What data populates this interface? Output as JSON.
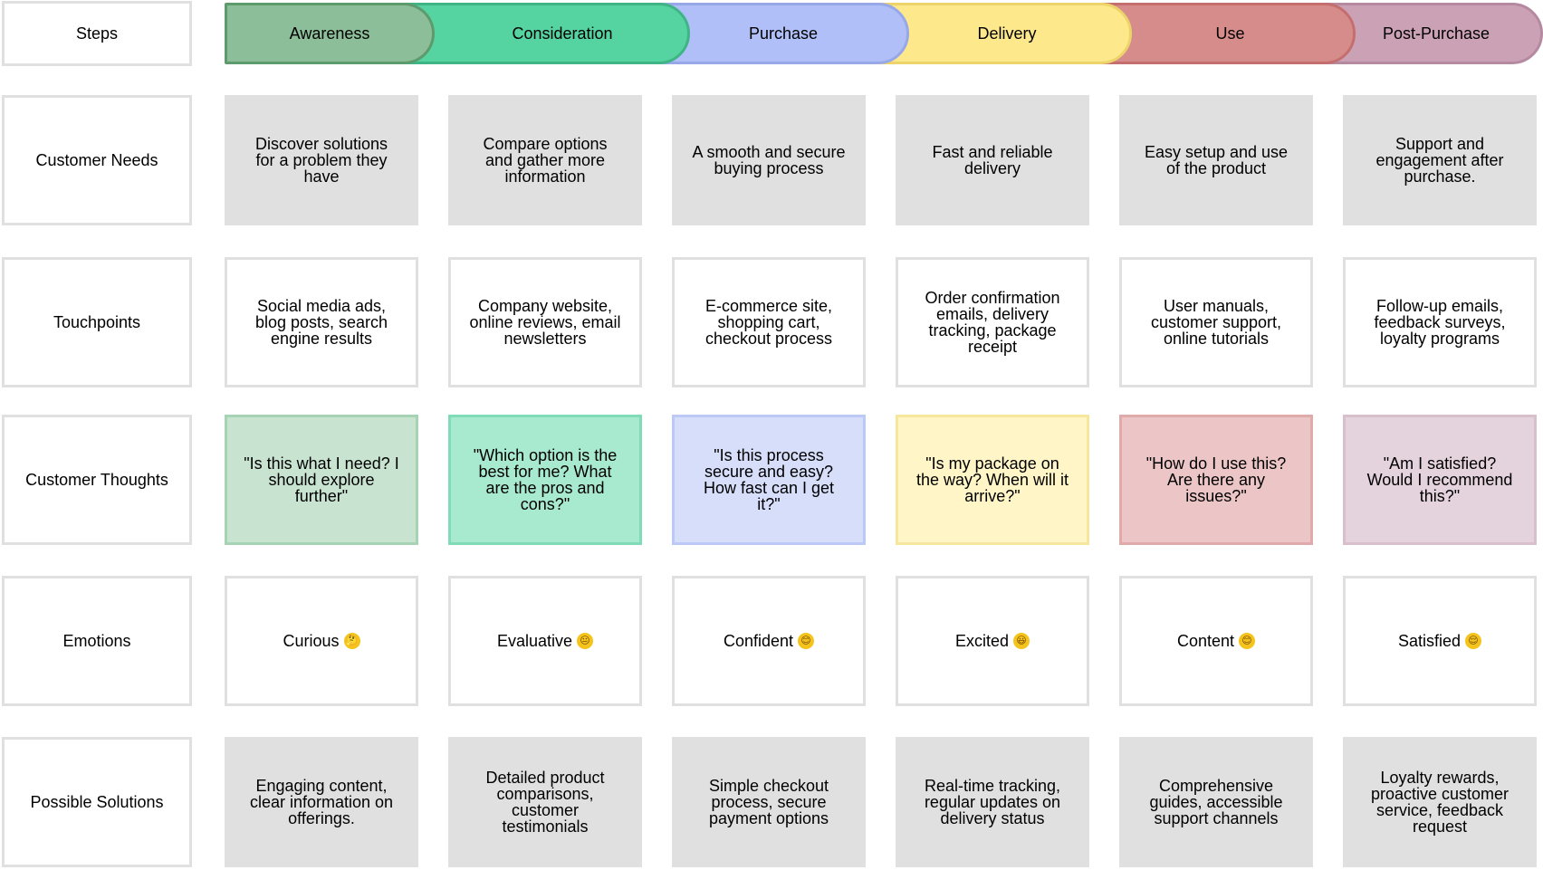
{
  "header": {
    "steps_label": "Steps"
  },
  "stages": [
    {
      "name": "Awareness",
      "fill": "#8bbe99",
      "border": "#5d9a6c",
      "thought_fill": "#c8e4d1",
      "thought_border": "#a6d3b3"
    },
    {
      "name": "Consideration",
      "fill": "#55d3a1",
      "border": "#3fb585",
      "thought_fill": "#a8ead0",
      "thought_border": "#7fdcb6"
    },
    {
      "name": "Purchase",
      "fill": "#b0bff7",
      "border": "#97a8e8",
      "thought_fill": "#d6defa",
      "thought_border": "#bcc8f5"
    },
    {
      "name": "Delivery",
      "fill": "#fde88b",
      "border": "#ecd46a",
      "thought_fill": "#fff5c7",
      "thought_border": "#f6e79c"
    },
    {
      "name": "Use",
      "fill": "#d78c8c",
      "border": "#c46e6e",
      "thought_fill": "#ecc6c6",
      "thought_border": "#dfaaaa"
    },
    {
      "name": "Post-Purchase",
      "fill": "#cba2b5",
      "border": "#b58aa0",
      "thought_fill": "#e4d2dc",
      "thought_border": "#d7bfcc"
    }
  ],
  "rows": [
    {
      "label": "Customer Needs",
      "style": "gray",
      "cells": [
        "Discover solutions for a problem they have",
        "Compare options and gather more information",
        "A smooth and secure buying process",
        "Fast and reliable delivery",
        "Easy setup and use of the product",
        "Support and engagement after purchase."
      ]
    },
    {
      "label": "Touchpoints",
      "style": "white",
      "cells": [
        "Social media ads, blog posts, search engine results",
        "Company website, online reviews, email newsletters",
        "E-commerce site, shopping cart, checkout process",
        "Order confirmation emails, delivery tracking, package receipt",
        "User manuals, customer support, online tutorials",
        "Follow-up emails, feedback surveys, loyalty programs"
      ]
    },
    {
      "label": "Customer Thoughts",
      "style": "colored",
      "cells": [
        "\"Is this what I need? I should explore further\"",
        "\"Which option is the best for me? What are the pros and cons?\"",
        "\"Is this process secure and easy? How fast can I get it?\"",
        "\"Is my package on the way? When will it arrive?\"",
        "\"How do I use this? Are there any issues?\"",
        "\"Am I satisfied? Would I recommend this?\""
      ]
    },
    {
      "label": "Emotions",
      "style": "white",
      "cells": [
        "Curious",
        "Evaluative",
        "Confident",
        "Excited",
        "Content",
        "Satisfied"
      ],
      "emoji": [
        "🤔",
        "😐",
        "😊",
        "😃",
        "😊",
        "😌"
      ]
    },
    {
      "label": "Possible Solutions",
      "style": "gray",
      "cells": [
        "Engaging content, clear information on offerings.",
        "Detailed product comparisons, customer testimonials",
        "Simple checkout process, secure payment options",
        "Real-time tracking, regular updates on delivery status",
        "Comprehensive guides, accessible support channels",
        "Loyalty rewards, proactive customer service, feedback request"
      ]
    }
  ]
}
